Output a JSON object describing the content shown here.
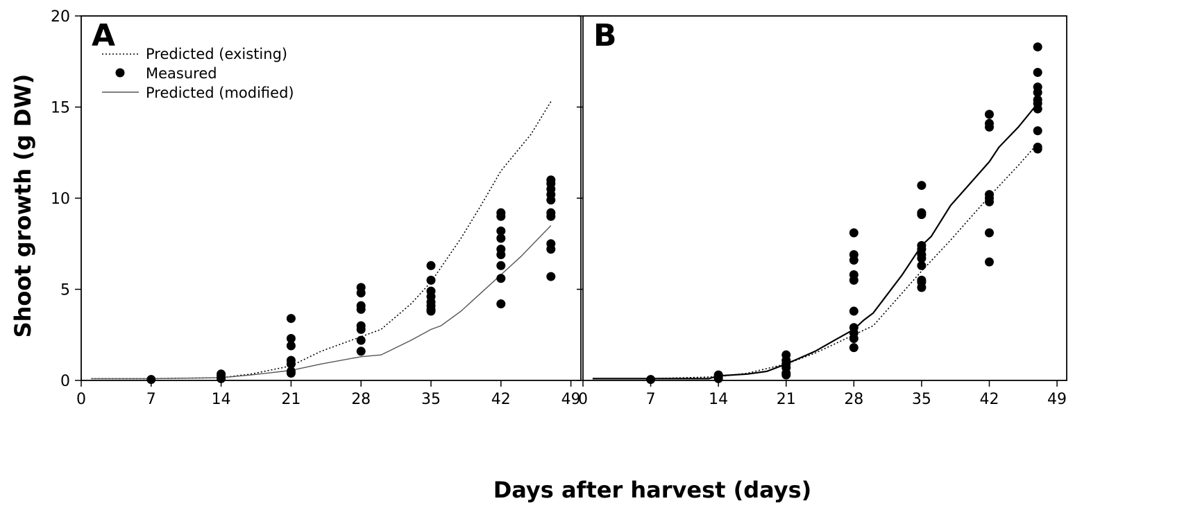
{
  "chart_data": {
    "type": "scatter",
    "ylabel": "Shoot growth (g DW)",
    "xlabel": "Days after harvest (days)",
    "xlim": [
      0,
      50
    ],
    "ylim": [
      0,
      20
    ],
    "xticks": [
      0,
      7,
      14,
      21,
      28,
      35,
      42,
      49
    ],
    "yticks": [
      0,
      5,
      10,
      15,
      20
    ],
    "grid": false,
    "legend": {
      "placement": "top-left",
      "entries": [
        "Predicted (existing)",
        "Measured",
        "Predicted (modified)"
      ]
    },
    "panels": [
      {
        "label": "A",
        "series": [
          {
            "name": "Predicted (existing)",
            "style": "dotted",
            "x": [
              1,
              7,
              14,
              17,
              21,
              24,
              28,
              30,
              33,
              35,
              38,
              40,
              42,
              45,
              47
            ],
            "y": [
              0.1,
              0.1,
              0.15,
              0.35,
              0.8,
              1.6,
              2.4,
              2.8,
              4.2,
              5.4,
              7.8,
              9.6,
              11.5,
              13.5,
              15.3
            ]
          },
          {
            "name": "Predicted (modified)",
            "style": "solid",
            "x": [
              1,
              7,
              14,
              17,
              21,
              24,
              28,
              30,
              33,
              35,
              36,
              38,
              40,
              42,
              44,
              47
            ],
            "y": [
              0.1,
              0.1,
              0.15,
              0.3,
              0.55,
              0.9,
              1.3,
              1.4,
              2.2,
              2.8,
              3.0,
              3.8,
              4.8,
              5.8,
              6.8,
              8.5
            ]
          },
          {
            "name": "Measured",
            "style": "marker",
            "x": [
              7,
              14,
              14,
              14,
              21,
              21,
              21,
              21,
              21,
              21,
              21,
              28,
              28,
              28,
              28,
              28,
              28,
              28,
              28,
              35,
              35,
              35,
              35,
              35,
              35,
              35,
              35,
              42,
              42,
              42,
              42,
              42,
              42,
              42,
              42,
              42,
              47,
              47,
              47,
              47,
              47,
              47,
              47,
              47,
              47,
              47
            ],
            "y": [
              0.05,
              0.1,
              0.25,
              0.35,
              3.4,
              2.3,
              1.9,
              1.1,
              0.9,
              0.5,
              0.4,
              5.1,
              4.8,
              4.1,
              3.9,
              3.0,
              2.8,
              2.2,
              1.6,
              6.3,
              5.5,
              4.9,
              4.6,
              4.3,
              4.1,
              3.9,
              3.8,
              9.2,
              9.0,
              8.2,
              7.8,
              7.2,
              6.9,
              6.3,
              5.6,
              4.2,
              11.0,
              10.8,
              10.5,
              10.2,
              9.9,
              9.2,
              9.0,
              7.5,
              7.2,
              5.7
            ]
          }
        ]
      },
      {
        "label": "B",
        "series": [
          {
            "name": "Predicted (existing)",
            "style": "dotted",
            "x": [
              1,
              7,
              14,
              17,
              21,
              24,
              28,
              30,
              33,
              35,
              38,
              40,
              42,
              45,
              47
            ],
            "y": [
              0.1,
              0.1,
              0.2,
              0.4,
              0.9,
              1.5,
              2.5,
              3.0,
              4.8,
              6.0,
              7.7,
              8.9,
              10.1,
              11.8,
              13.0
            ]
          },
          {
            "name": "Predicted (modified)",
            "style": "solid",
            "x": [
              1,
              7,
              13,
              14,
              17,
              19,
              21,
              24,
              26,
              28,
              29,
              30,
              33,
              35,
              36,
              38,
              40,
              42,
              43,
              45,
              47
            ],
            "y": [
              0.1,
              0.1,
              0.1,
              0.25,
              0.35,
              0.5,
              0.9,
              1.6,
              2.2,
              2.8,
              3.3,
              3.7,
              5.8,
              7.4,
              7.9,
              9.6,
              10.8,
              12.0,
              12.8,
              13.9,
              15.2
            ]
          },
          {
            "name": "Measured",
            "style": "marker",
            "x": [
              7,
              14,
              14,
              14,
              21,
              21,
              21,
              21,
              21,
              21,
              28,
              28,
              28,
              28,
              28,
              28,
              28,
              28,
              28,
              28,
              35,
              35,
              35,
              35,
              35,
              35,
              35,
              35,
              35,
              35,
              35,
              42,
              42,
              42,
              42,
              42,
              42,
              42,
              42,
              47,
              47,
              47,
              47,
              47,
              47,
              47,
              47,
              47,
              47
            ],
            "y": [
              0.05,
              0.1,
              0.2,
              0.3,
              1.4,
              1.1,
              0.9,
              0.7,
              0.4,
              0.3,
              8.1,
              6.9,
              6.6,
              5.8,
              5.5,
              3.8,
              2.9,
              2.6,
              2.3,
              1.8,
              10.7,
              9.2,
              9.1,
              7.4,
              7.2,
              6.9,
              6.7,
              6.3,
              5.5,
              5.4,
              5.1,
              14.6,
              14.1,
              13.9,
              10.2,
              10.0,
              9.8,
              8.1,
              6.5,
              18.3,
              16.9,
              16.1,
              15.8,
              15.4,
              15.2,
              14.9,
              13.7,
              12.8,
              12.7
            ]
          }
        ]
      }
    ]
  }
}
